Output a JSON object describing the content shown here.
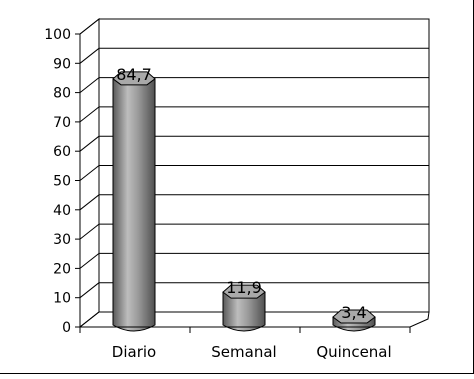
{
  "chart_data": {
    "type": "bar",
    "title": "",
    "xlabel": "",
    "ylabel": "",
    "categories": [
      "Diario",
      "Semanal",
      "Quincenal"
    ],
    "values": [
      84.7,
      11.9,
      3.4
    ],
    "data_labels": [
      "84,7",
      "11,9",
      "3,4"
    ],
    "ylim": [
      0,
      100
    ],
    "y_ticks": [
      0,
      10,
      20,
      30,
      40,
      50,
      60,
      70,
      80,
      90,
      100
    ],
    "y_tick_labels": [
      "0",
      "10",
      "20",
      "30",
      "40",
      "50",
      "60",
      "70",
      "80",
      "90",
      "100"
    ],
    "grid": true,
    "legend": "none",
    "three_d": true,
    "colors": {
      "bar_front": "#8a8a8a",
      "bar_highlight": "#c8c8c8",
      "bar_shadow": "#4a4a4a",
      "bar_top": "#a9a9a9",
      "grid": "#000000",
      "wall": "#ffffff"
    }
  }
}
